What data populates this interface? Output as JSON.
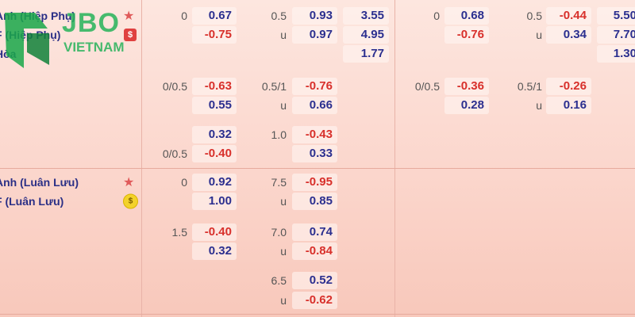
{
  "logo": {
    "brand": "JBO",
    "tagline": "VIETNAM"
  },
  "sections": [
    {
      "teams": [
        "Anh (Hiệp Phụ)",
        "F (Hiệp Phụ)",
        "Hòa"
      ],
      "badge": "$",
      "lines": [
        {
          "hdp_line": "0",
          "hdp": "0.67",
          "ou_line": "0.5",
          "ou": "0.93",
          "x12": "3.55",
          "hdp2_line": "0",
          "hdp2": "0.68",
          "ou2_line": "0.5",
          "ou2": "-0.44",
          "x12_2": "5.50"
        },
        {
          "hdp": "-0.75",
          "ou_line": "u",
          "ou": "0.97",
          "x12": "4.95",
          "hdp2": "-0.76",
          "ou2_line": "u",
          "ou2": "0.34",
          "x12_2": "7.70"
        },
        {
          "x12": "1.77",
          "x12_2": "1.30"
        },
        {
          "hdp_line": "0/0.5",
          "hdp": "-0.63",
          "ou_line": "0.5/1",
          "ou": "-0.76",
          "hdp2_line": "0/0.5",
          "hdp2": "-0.36",
          "ou2_line": "0.5/1",
          "ou2": "-0.26"
        },
        {
          "hdp": "0.55",
          "ou_line": "u",
          "ou": "0.66",
          "hdp2": "0.28",
          "ou2_line": "u",
          "ou2": "0.16"
        },
        {
          "hdp": "0.32",
          "ou_line": "1.0",
          "ou": "-0.43"
        },
        {
          "hdp_line": "0/0.5",
          "hdp": "-0.40",
          "ou": "0.33"
        }
      ]
    },
    {
      "teams": [
        "Anh (Luân Lưu)",
        "F (Luân Lưu)"
      ],
      "badge": "$",
      "lines": [
        {
          "hdp_line": "0",
          "hdp": "0.92",
          "ou_line": "7.5",
          "ou": "-0.95"
        },
        {
          "hdp": "1.00",
          "ou_line": "u",
          "ou": "0.85"
        },
        {
          "hdp_line": "1.5",
          "hdp": "-0.40",
          "ou_line": "7.0",
          "ou": "0.74"
        },
        {
          "hdp": "0.32",
          "ou_line": "u",
          "ou": "-0.84"
        },
        {
          "ou_line": "6.5",
          "ou": "0.52"
        },
        {
          "ou_line": "u",
          "ou": "-0.62"
        }
      ]
    }
  ]
}
